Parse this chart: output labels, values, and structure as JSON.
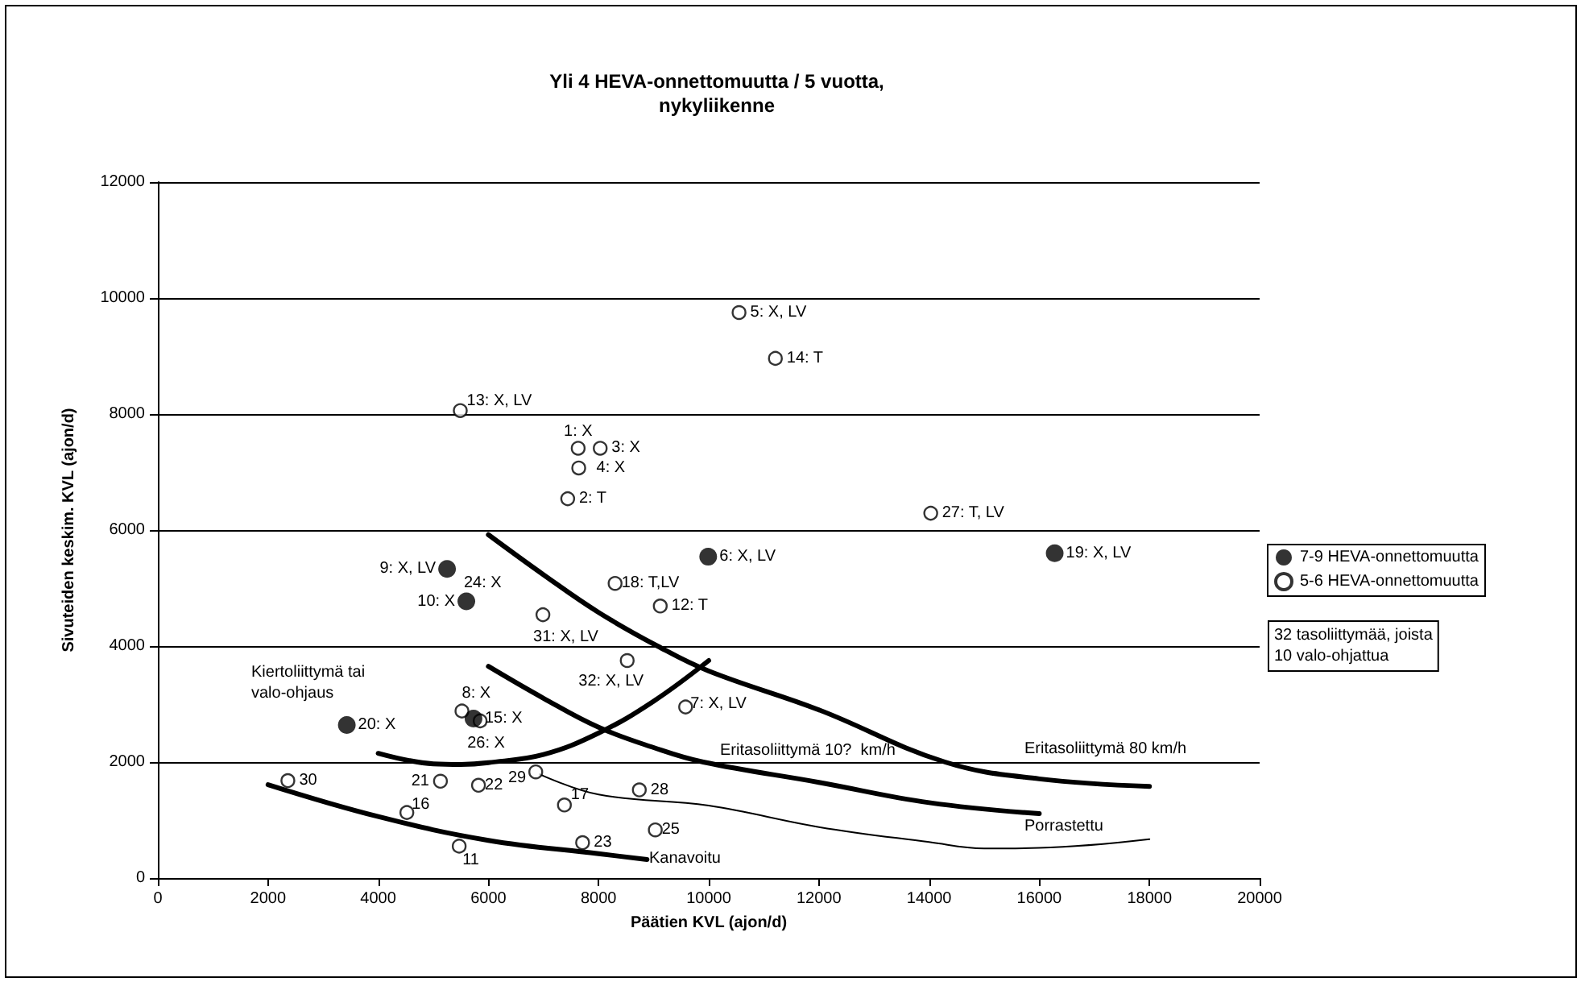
{
  "chart_data": {
    "type": "scatter",
    "title": "Yli 4 HEVA-onnettomuutta / 5 vuotta,\nnykyliikenne",
    "xlabel": "Päätien KVL (ajon/d)",
    "ylabel": "Sivuteiden keskim. KVL (ajon/d)",
    "xlim": [
      0,
      20000
    ],
    "xticks": [
      0,
      2000,
      4000,
      6000,
      8000,
      10000,
      12000,
      14000,
      16000,
      18000,
      20000
    ],
    "ylim": [
      0,
      12000
    ],
    "yticks": [
      0,
      2000,
      4000,
      6000,
      8000,
      10000,
      12000
    ],
    "grid": "y",
    "legend": "right",
    "marker": "circle",
    "series": [
      {
        "name": "7-9 HEVA-onnettomuutta",
        "color": "#000000",
        "x": [
          5250,
          5600,
          9990,
          16280,
          3430,
          5730
        ],
        "values": [
          5330,
          4770,
          5540,
          5600,
          2640,
          2750
        ]
      },
      {
        "name": "5-6 HEVA-onnettomuutta",
        "color": "#000000",
        "x": [
          10550,
          11210,
          5490,
          7630,
          8030,
          7640,
          7440,
          14030,
          8300,
          9120,
          6990,
          8520,
          9580,
          5520,
          5850,
          2360,
          5130,
          5820,
          6860,
          8740,
          7380,
          4520,
          9030,
          7710,
          5470
        ],
        "values": [
          9750,
          8960,
          8060,
          7410,
          7410,
          7070,
          6540,
          6290,
          5080,
          4690,
          4540,
          3750,
          2950,
          2880,
          2710,
          1680,
          1670,
          1600,
          1830,
          1520,
          1260,
          1130,
          830,
          610,
          550
        ]
      },
      {
        "type": "line",
        "marker": "none",
        "color": "#000000",
        "x": [
          6000,
          7000,
          8000,
          9070,
          10000,
          12000,
          14290,
          16000,
          18000
        ],
        "values": [
          5920,
          5230,
          4580,
          4000,
          3570,
          2900,
          2000,
          1710,
          1580
        ]
      },
      {
        "type": "line",
        "marker": "none",
        "color": "#000000",
        "x": [
          6000,
          7000,
          8000,
          9000,
          9900,
          12000,
          14000,
          16000
        ],
        "values": [
          3650,
          3100,
          2600,
          2250,
          2000,
          1650,
          1300,
          1110
        ]
      },
      {
        "type": "line",
        "marker": "none",
        "color": "#000000",
        "x": [
          6930,
          8000,
          10000,
          12000,
          14000,
          15000,
          16000,
          18000
        ],
        "values": [
          1790,
          1440,
          1250,
          880,
          620,
          510,
          520,
          670
        ]
      },
      {
        "type": "line",
        "marker": "none",
        "color": "#000000",
        "x": [
          2000,
          4000,
          6000,
          8000,
          8880
        ],
        "values": [
          1610,
          1060,
          650,
          420,
          320
        ]
      },
      {
        "type": "line",
        "marker": "none",
        "color": "#000000",
        "x": [
          4000,
          5000,
          5500,
          6000,
          7000,
          8000,
          9000,
          10000
        ],
        "values": [
          2150,
          1970,
          1960,
          1990,
          2130,
          2500,
          3050,
          3750
        ]
      }
    ],
    "annotations": [
      {
        "text": "9: X, LV",
        "x": 5250,
        "y": 5330
      },
      {
        "text": "10: X",
        "x": 5600,
        "y": 4770
      },
      {
        "text": "6: X, LV",
        "x": 9990,
        "y": 5540
      },
      {
        "text": "19: X, LV",
        "x": 16280,
        "y": 5600
      },
      {
        "text": "20: X",
        "x": 3430,
        "y": 2640
      },
      {
        "text": "15: X",
        "x": 5730,
        "y": 2750
      },
      {
        "text": "5: X, LV",
        "x": 10550,
        "y": 9750
      },
      {
        "text": "14: T",
        "x": 11210,
        "y": 8960
      },
      {
        "text": "13: X, LV",
        "x": 5490,
        "y": 8060
      },
      {
        "text": "1: X",
        "x": 7630,
        "y": 7410
      },
      {
        "text": "3: X",
        "x": 8030,
        "y": 7410
      },
      {
        "text": "4: X",
        "x": 7640,
        "y": 7070
      },
      {
        "text": "2: T",
        "x": 7440,
        "y": 6540
      },
      {
        "text": "27: T, LV",
        "x": 14030,
        "y": 6290
      },
      {
        "text": "18: T,LV",
        "x": 8300,
        "y": 5080
      },
      {
        "text": "12: T",
        "x": 9120,
        "y": 4690
      },
      {
        "text": "31: X, LV",
        "x": 6990,
        "y": 4540
      },
      {
        "text": "32: X, LV",
        "x": 8520,
        "y": 3750
      },
      {
        "text": "7: X, LV",
        "x": 9580,
        "y": 2950
      },
      {
        "text": "8: X",
        "x": 5520,
        "y": 2880
      },
      {
        "text": "26: X",
        "x": 5850,
        "y": 2710
      },
      {
        "text": "30",
        "x": 2360,
        "y": 1680
      },
      {
        "text": "21",
        "x": 5130,
        "y": 1670
      },
      {
        "text": "22",
        "x": 5820,
        "y": 1600
      },
      {
        "text": "29",
        "x": 6860,
        "y": 1830
      },
      {
        "text": "28",
        "x": 8740,
        "y": 1520
      },
      {
        "text": "17",
        "x": 7380,
        "y": 1260
      },
      {
        "text": "16",
        "x": 4520,
        "y": 1130
      },
      {
        "text": "25",
        "x": 9030,
        "y": 830
      },
      {
        "text": "23",
        "x": 7710,
        "y": 610
      },
      {
        "text": "11",
        "x": 5470,
        "y": 550
      },
      "24: X",
      "Eritasoliittymä 80 km/h",
      "Eritasoliittymä 10?  km/h",
      "Porrastettu",
      "Kanavoitu",
      "Kiertoliittymä tai valo-ohjaus",
      "32 tasoliittymää, joista\n10 valo-ohjattua"
    ]
  }
}
